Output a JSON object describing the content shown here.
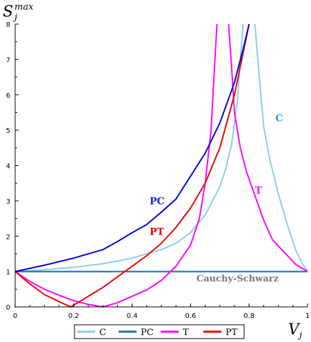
{
  "chart_data": {
    "type": "line",
    "ylabel": {
      "main": "S",
      "sub": "j",
      "sup": "max"
    },
    "xlabel": {
      "main": "V",
      "sub": "j"
    },
    "xlim": [
      0,
      1
    ],
    "ylim": [
      0,
      8
    ],
    "xticks": [
      0,
      0.2,
      0.4,
      0.6,
      0.8,
      1
    ],
    "xtick_labels": [
      "0",
      "0.2",
      "0.4",
      "0.6",
      "0.8",
      "1"
    ],
    "yticks": [
      0,
      1,
      2,
      3,
      4,
      5,
      6,
      7,
      8
    ],
    "ytick_labels": [
      "0",
      "1",
      "2",
      "3",
      "4",
      "5",
      "6",
      "7",
      "8"
    ],
    "grid": false,
    "legend_position": "bottom-center",
    "series": [
      {
        "name": "C",
        "color": "#87ceeb",
        "segments": [
          [
            [
              0,
              1
            ],
            [
              0.1,
              1.05
            ],
            [
              0.2,
              1.12
            ],
            [
              0.3,
              1.22
            ],
            [
              0.4,
              1.38
            ],
            [
              0.5,
              1.62
            ],
            [
              0.55,
              1.8
            ],
            [
              0.6,
              2.1
            ],
            [
              0.65,
              2.6
            ],
            [
              0.7,
              3.4
            ],
            [
              0.72,
              3.9
            ],
            [
              0.74,
              4.6
            ],
            [
              0.76,
              5.8
            ],
            [
              0.77,
              7.0
            ],
            [
              0.78,
              8.0
            ]
          ],
          [
            [
              0.82,
              8.0
            ],
            [
              0.83,
              7.0
            ],
            [
              0.84,
              6.0
            ],
            [
              0.85,
              5.1
            ],
            [
              0.87,
              4.2
            ],
            [
              0.9,
              3.2
            ],
            [
              0.93,
              2.35
            ],
            [
              0.96,
              1.6
            ],
            [
              0.98,
              1.25
            ],
            [
              1.0,
              1.0
            ]
          ]
        ]
      },
      {
        "name": "PC",
        "color": "#1f6fb5",
        "segments": [
          [
            [
              0,
              1
            ],
            [
              1,
              1
            ]
          ]
        ]
      },
      {
        "name": "T",
        "color": "#ff00ff",
        "segments": [
          [
            [
              0,
              1
            ],
            [
              0.05,
              0.72
            ],
            [
              0.1,
              0.5
            ],
            [
              0.15,
              0.33
            ],
            [
              0.2,
              0.18
            ],
            [
              0.25,
              0.07
            ],
            [
              0.3,
              0.0
            ],
            [
              0.35,
              0.12
            ],
            [
              0.4,
              0.3
            ],
            [
              0.45,
              0.48
            ],
            [
              0.5,
              0.75
            ],
            [
              0.55,
              1.15
            ],
            [
              0.6,
              1.75
            ],
            [
              0.63,
              2.5
            ],
            [
              0.65,
              3.5
            ],
            [
              0.67,
              5.0
            ],
            [
              0.68,
              6.5
            ],
            [
              0.69,
              8.0
            ]
          ],
          [
            [
              0.73,
              8.0
            ],
            [
              0.74,
              6.8
            ],
            [
              0.75,
              5.5
            ],
            [
              0.77,
              4.5
            ],
            [
              0.79,
              3.85
            ],
            [
              0.82,
              3.15
            ],
            [
              0.85,
              2.45
            ],
            [
              0.88,
              1.9
            ],
            [
              0.92,
              1.55
            ],
            [
              0.96,
              1.2
            ],
            [
              1.0,
              1.0
            ]
          ]
        ]
      },
      {
        "name": "PT",
        "color": "#ee0000",
        "segments": [
          [
            [
              0,
              1
            ],
            [
              0.05,
              0.65
            ],
            [
              0.1,
              0.35
            ],
            [
              0.15,
              0.15
            ],
            [
              0.19,
              0.0
            ],
            [
              0.25,
              0.3
            ],
            [
              0.3,
              0.55
            ],
            [
              0.35,
              0.85
            ],
            [
              0.4,
              1.15
            ],
            [
              0.45,
              1.45
            ],
            [
              0.5,
              1.8
            ],
            [
              0.55,
              2.25
            ],
            [
              0.6,
              2.8
            ],
            [
              0.65,
              3.5
            ],
            [
              0.7,
              4.5
            ],
            [
              0.75,
              6.0
            ],
            [
              0.78,
              7.2
            ],
            [
              0.8,
              8.0
            ]
          ]
        ]
      },
      {
        "name": "",
        "color": "#0000dd",
        "segments": [
          [
            [
              0,
              1
            ],
            [
              0.1,
              1.18
            ],
            [
              0.2,
              1.38
            ],
            [
              0.3,
              1.62
            ],
            [
              0.35,
              1.85
            ],
            [
              0.4,
              2.1
            ],
            [
              0.45,
              2.33
            ],
            [
              0.5,
              2.68
            ],
            [
              0.55,
              3.05
            ],
            [
              0.6,
              3.7
            ],
            [
              0.65,
              4.35
            ],
            [
              0.7,
              5.2
            ],
            [
              0.75,
              6.35
            ],
            [
              0.78,
              7.3
            ],
            [
              0.8,
              8.0
            ]
          ]
        ]
      }
    ],
    "reference_line": {
      "label": "Cauchy-Schwarz",
      "y": 1,
      "color": "#888888"
    },
    "annotations": [
      {
        "text": "C",
        "color": "#29a3c8",
        "x": 0.89,
        "y": 5.25
      },
      {
        "text": "T",
        "color": "#ff00ff",
        "x": 0.82,
        "y": 3.2
      },
      {
        "text": "PC",
        "color": "#2222cc",
        "x": 0.46,
        "y": 2.9
      },
      {
        "text": "PT",
        "color": "#ee0000",
        "x": 0.46,
        "y": 2.03
      },
      {
        "text": "Cauchy-Schwarz",
        "color": "#777777",
        "x": 0.62,
        "y": 0.72
      }
    ]
  }
}
